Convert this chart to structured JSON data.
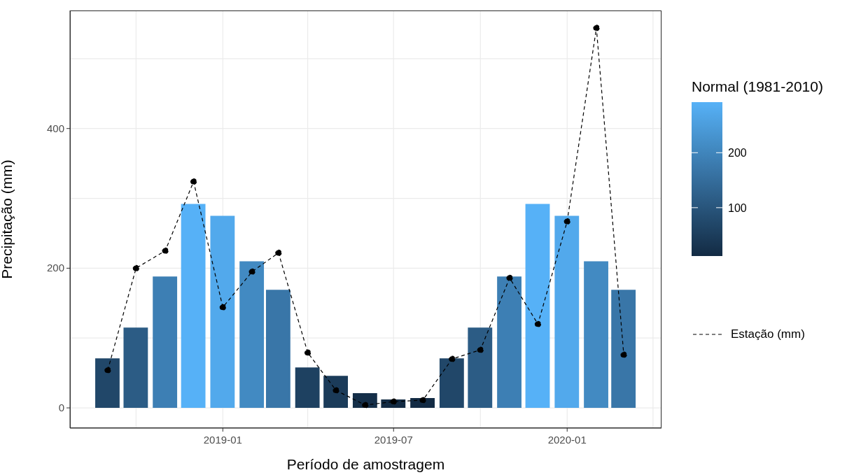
{
  "chart_data": {
    "type": "bar",
    "xlabel": "Período de amostragem",
    "ylabel": "Precipitação (mm)",
    "clabel": "Normal (1981-2010)",
    "x": [
      "2018-09",
      "2018-10",
      "2018-11",
      "2018-12",
      "2019-01",
      "2019-02",
      "2019-03",
      "2019-04",
      "2019-05",
      "2019-06",
      "2019-07",
      "2019-08",
      "2019-09",
      "2019-10",
      "2019-11",
      "2019-12",
      "2020-01",
      "2020-02",
      "2020-03"
    ],
    "series": [
      {
        "values": [
          71,
          115,
          188,
          292,
          275,
          210,
          169,
          58,
          46,
          21,
          12,
          14,
          71,
          115,
          188,
          292,
          275,
          210,
          169
        ],
        "colors": [
          "#214769",
          "#2c5c85",
          "#3d7fb4",
          "#56b1f7",
          "#52a9ec",
          "#428ac2",
          "#3976a8",
          "#1e4161",
          "#1b3b59",
          "#152f49",
          "#132b43",
          "#132b44",
          "#214769",
          "#2c5c85",
          "#3d7fb4",
          "#56b1f7",
          "#52a9ec",
          "#428ac2",
          "#3976a8"
        ]
      },
      {
        "type": "line",
        "name": "Estação (mm)",
        "color": "#000000",
        "line_style": "dashed",
        "marker": "circle",
        "values": [
          54,
          200,
          225,
          324,
          144,
          195,
          222,
          79,
          25,
          4,
          9,
          11,
          70,
          83,
          186,
          120,
          267,
          544,
          76
        ]
      }
    ],
    "clim": [
      12,
      292
    ],
    "cticks": [
      100,
      200
    ],
    "xlim": [
      "2018-07-23",
      "2020-04-10"
    ],
    "xticks": [
      {
        "value": "2018-10",
        "label": null
      },
      "2019-01",
      {
        "value": "2019-04",
        "label": null
      },
      "2019-07",
      {
        "value": "2019-10",
        "label": null
      },
      "2020-01",
      {
        "value": "2020-04",
        "label": null
      }
    ],
    "ylim": [
      -29,
      569
    ],
    "yticks": [
      0,
      {
        "value": 100,
        "label": null
      },
      200,
      {
        "value": 300,
        "label": null
      },
      400,
      {
        "value": 500,
        "label": null
      }
    ],
    "grid": true,
    "legend": "right"
  }
}
